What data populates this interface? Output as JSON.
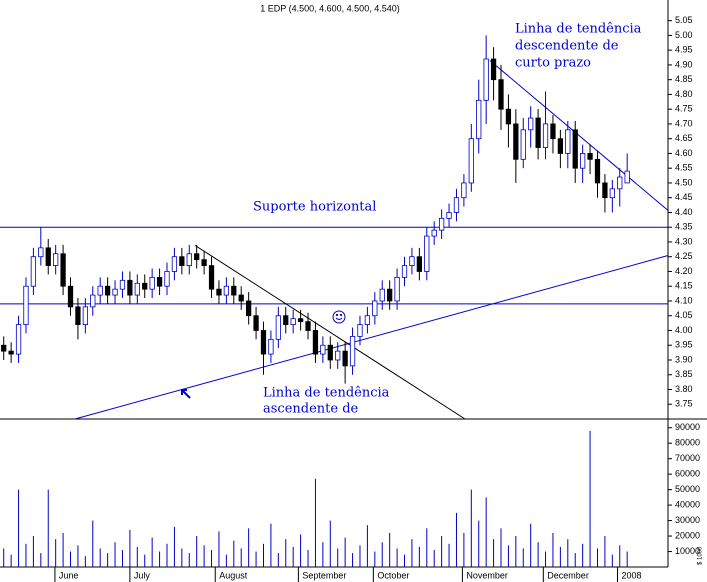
{
  "chart_data": {
    "type": "candlestick",
    "title": "1 EDP (4.500, 4.600, 4.500, 4.540)",
    "annotations": [
      "Linha de tendência",
      "descendente de",
      "curto prazo",
      "Suporte horizontal",
      "Linha de tendência",
      "ascendente de"
    ],
    "up_color": "#0000cc",
    "down_color": "#000000",
    "line_color": "#0000cc",
    "xlim": [
      0,
      90
    ],
    "xticks": [
      {
        "value": 7.4,
        "label": "June"
      },
      {
        "value": 17.5,
        "label": "July"
      },
      {
        "value": 29,
        "label": "August"
      },
      {
        "value": 40.2,
        "label": "September"
      },
      {
        "value": 50.3,
        "label": "October"
      },
      {
        "value": 62.3,
        "label": "November"
      },
      {
        "value": 73.2,
        "label": "December"
      },
      {
        "value": 83.2,
        "label": "2008"
      }
    ],
    "ylim": [
      3.7,
      5.12
    ],
    "yticks": [
      3.75,
      {
        "value": 3.8,
        "label": "3.80"
      },
      3.85,
      {
        "value": 3.9,
        "label": "3.90"
      },
      3.95,
      {
        "value": 4,
        "label": "4.00"
      },
      4.05,
      {
        "value": 4.1,
        "label": "4.10"
      },
      4.15,
      {
        "value": 4.2,
        "label": "4.20"
      },
      4.25,
      {
        "value": 4.3,
        "label": "4.30"
      },
      4.35,
      {
        "value": 4.4,
        "label": "4.40"
      },
      4.45,
      {
        "value": 4.5,
        "label": "4.50"
      },
      4.55,
      {
        "value": 4.6,
        "label": "4.60"
      },
      4.65,
      {
        "value": 4.7,
        "label": "4.70"
      },
      4.75,
      {
        "value": 4.8,
        "label": "4.80"
      },
      4.85,
      {
        "value": 4.9,
        "label": "4.90"
      },
      4.95,
      {
        "value": 5,
        "label": "5.00"
      },
      5.05
    ],
    "hlines": [
      4.35,
      4.09
    ],
    "trendlines": [
      [
        [
          66.0,
          4.915
        ],
        [
          90,
          4.407
        ]
      ],
      [
        [
          10.1,
          3.7
        ],
        [
          90,
          4.254
        ]
      ],
      [
        [
          26.3,
          4.288
        ],
        [
          62.65,
          3.7
        ]
      ]
    ],
    "open": [
      3.95,
      3.93,
      3.92,
      4.02,
      4.15,
      4.25,
      4.28,
      4.22,
      4.26,
      4.15,
      4.08,
      4.02,
      4.08,
      4.12,
      4.15,
      4.12,
      4.14,
      4.17,
      4.12,
      4.16,
      4.14,
      4.18,
      4.15,
      4.2,
      4.25,
      4.22,
      4.26,
      4.24,
      4.22,
      4.14,
      4.12,
      4.15,
      4.12,
      4.1,
      4.05,
      4.0,
      3.92,
      3.97,
      4.05,
      4.02,
      4.04,
      4.03,
      4.0,
      3.92,
      3.95,
      3.9,
      3.93,
      3.88,
      3.98,
      4.02,
      4.05,
      4.1,
      4.14,
      4.1,
      4.18,
      4.22,
      4.25,
      4.2,
      4.32,
      4.34,
      4.38,
      4.4,
      4.45,
      4.5,
      4.65,
      4.78,
      4.92,
      4.85,
      4.75,
      4.7,
      4.58,
      4.68,
      4.72,
      4.62,
      4.7,
      4.65,
      4.6,
      4.68,
      4.55,
      4.6,
      4.58,
      4.5,
      4.45,
      4.48,
      4.5
    ],
    "high": [
      3.98,
      3.96,
      4.05,
      4.18,
      4.28,
      4.35,
      4.31,
      4.29,
      4.29,
      4.18,
      4.11,
      4.11,
      4.15,
      4.18,
      4.18,
      4.17,
      4.2,
      4.2,
      4.19,
      4.19,
      4.21,
      4.21,
      4.23,
      4.28,
      4.28,
      4.29,
      4.29,
      4.27,
      4.25,
      4.17,
      4.18,
      4.18,
      4.15,
      4.13,
      4.08,
      4.03,
      4.0,
      4.08,
      4.08,
      4.07,
      4.07,
      4.06,
      4.03,
      3.98,
      3.98,
      3.96,
      3.96,
      4.01,
      4.05,
      4.08,
      4.13,
      4.17,
      4.17,
      4.21,
      4.25,
      4.28,
      4.28,
      4.35,
      4.37,
      4.41,
      4.43,
      4.48,
      4.53,
      4.7,
      4.85,
      5.0,
      4.96,
      4.9,
      4.8,
      4.75,
      4.72,
      4.76,
      4.75,
      4.81,
      4.73,
      4.68,
      4.71,
      4.71,
      4.63,
      4.63,
      4.61,
      4.53,
      4.51,
      4.55,
      4.6
    ],
    "low": [
      3.9,
      3.89,
      3.89,
      3.99,
      4.12,
      4.22,
      4.19,
      4.19,
      4.12,
      4.05,
      3.97,
      3.99,
      4.05,
      4.09,
      4.09,
      4.09,
      4.11,
      4.09,
      4.09,
      4.11,
      4.11,
      4.12,
      4.12,
      4.17,
      4.19,
      4.19,
      4.21,
      4.19,
      4.11,
      4.09,
      4.09,
      4.09,
      4.07,
      4.02,
      3.97,
      3.85,
      3.89,
      3.94,
      3.99,
      3.99,
      4.0,
      3.97,
      3.89,
      3.89,
      3.87,
      3.87,
      3.82,
      3.85,
      3.95,
      3.99,
      4.02,
      4.07,
      4.07,
      4.07,
      4.15,
      4.19,
      4.17,
      4.17,
      4.29,
      4.31,
      4.35,
      4.37,
      4.42,
      4.47,
      4.6,
      4.7,
      4.78,
      4.68,
      4.62,
      4.5,
      4.55,
      4.62,
      4.58,
      4.58,
      4.6,
      4.55,
      4.55,
      4.5,
      4.5,
      4.53,
      4.45,
      4.4,
      4.4,
      4.42,
      4.5
    ],
    "close": [
      3.93,
      3.92,
      4.02,
      4.15,
      4.25,
      4.28,
      4.22,
      4.26,
      4.15,
      4.08,
      4.02,
      4.08,
      4.12,
      4.15,
      4.12,
      4.14,
      4.17,
      4.12,
      4.16,
      4.14,
      4.18,
      4.15,
      4.2,
      4.25,
      4.22,
      4.26,
      4.24,
      4.22,
      4.14,
      4.12,
      4.15,
      4.12,
      4.1,
      4.05,
      4.0,
      3.92,
      3.97,
      4.05,
      4.02,
      4.04,
      4.03,
      4.0,
      3.92,
      3.95,
      3.9,
      3.93,
      3.88,
      3.98,
      4.02,
      4.05,
      4.1,
      4.14,
      4.1,
      4.18,
      4.22,
      4.25,
      4.2,
      4.32,
      4.34,
      4.38,
      4.4,
      4.45,
      4.5,
      4.65,
      4.78,
      4.92,
      4.85,
      4.75,
      4.7,
      4.58,
      4.68,
      4.72,
      4.62,
      4.7,
      4.65,
      4.6,
      4.68,
      4.55,
      4.6,
      4.58,
      4.5,
      4.45,
      4.48,
      4.52,
      4.54
    ],
    "volume": {
      "axis_label": "$ 1000",
      "color": "#0000cc",
      "ylim": [
        0,
        95000
      ],
      "yticks": [
        10000,
        20000,
        30000,
        40000,
        50000,
        60000,
        70000,
        80000,
        90000
      ],
      "values": [
        12000,
        8000,
        50000,
        15000,
        20000,
        9000,
        50000,
        18000,
        22000,
        10000,
        14000,
        7000,
        30000,
        12000,
        9000,
        16000,
        11000,
        24000,
        13000,
        8000,
        19000,
        10000,
        15000,
        26000,
        12000,
        9000,
        20000,
        14000,
        11000,
        23000,
        8000,
        17000,
        12000,
        25000,
        10000,
        15000,
        28000,
        9000,
        18000,
        13000,
        21000,
        11000,
        57000,
        16000,
        30000,
        12000,
        19000,
        9000,
        14000,
        27000,
        10000,
        16000,
        22000,
        12000,
        8000,
        18000,
        13000,
        25000,
        11000,
        20000,
        15000,
        35000,
        22000,
        50000,
        30000,
        45000,
        18000,
        25000,
        14000,
        20000,
        12000,
        28000,
        16000,
        10000,
        22000,
        13000,
        18000,
        9000,
        15000,
        88000,
        12000,
        20000,
        8000,
        14000,
        10000
      ]
    }
  }
}
